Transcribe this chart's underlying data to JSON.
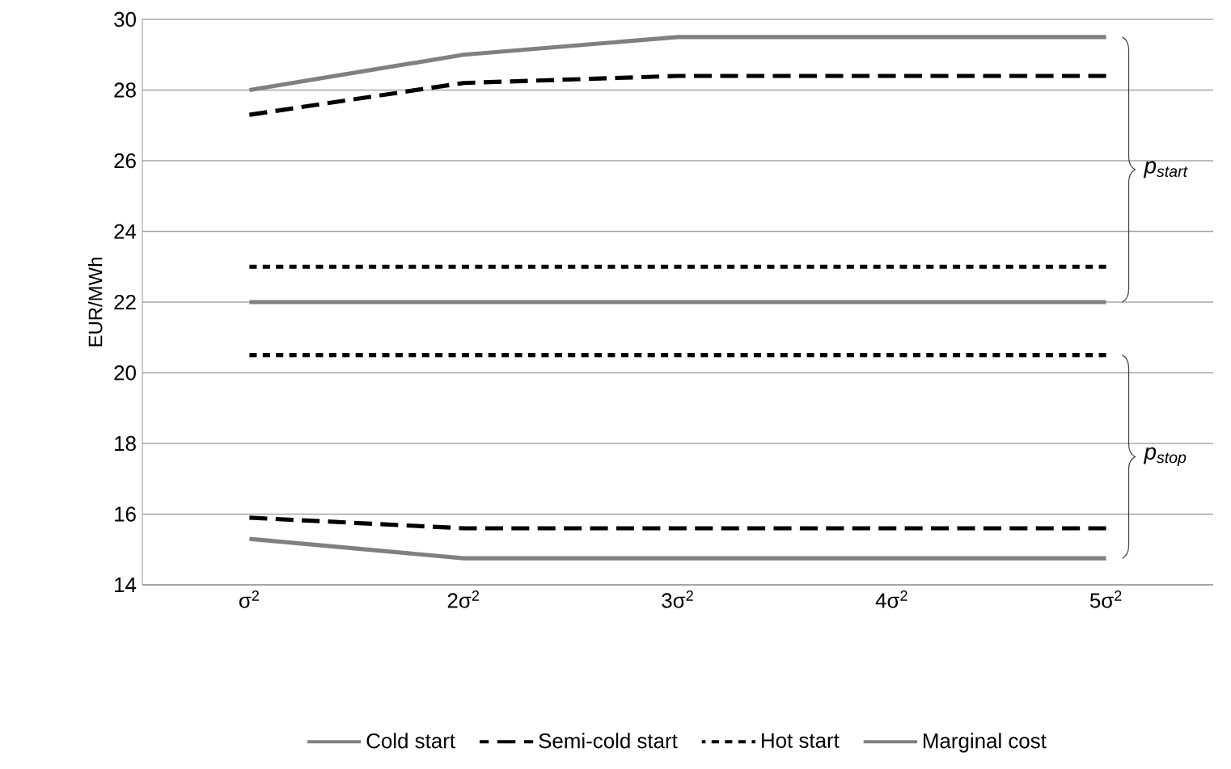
{
  "chart_data": {
    "type": "line",
    "ylabel": "EUR/MWh",
    "categories": [
      "σ$^{2}$",
      "2σ$^{2}$",
      "3σ$^{2}$",
      "4σ$^{2}$",
      "5σ$^{2}$"
    ],
    "ylim": [
      14,
      30
    ],
    "yticks": [
      14,
      16,
      18,
      20,
      22,
      24,
      26,
      28,
      30
    ],
    "grid": "y",
    "legend": "bottom",
    "marker": "none",
    "series": [
      {
        "name": "Cold start",
        "color": "#808080",
        "line_style": "solid",
        "values": [
          28,
          29,
          29.5,
          29.5,
          29.5
        ]
      },
      {
        "name": "Semi-cold start",
        "color": "#000000",
        "line_style": "dashed",
        "values": [
          27.3,
          28.2,
          28.4,
          28.4,
          28.4
        ]
      },
      {
        "name": "Hot start",
        "color": "#000000",
        "line_style": "dotted",
        "values": [
          23,
          23,
          23,
          23,
          23
        ]
      },
      {
        "name": "Marginal cost",
        "color": "#808080",
        "line_style": "solid",
        "values": [
          22,
          22,
          22,
          22,
          22
        ]
      },
      {
        "color": "#808080",
        "line_style": "solid",
        "values": [
          15.3,
          14.75,
          14.75,
          14.75,
          14.75
        ]
      },
      {
        "color": "#000000",
        "line_style": "dashed",
        "values": [
          15.9,
          15.6,
          15.6,
          15.6,
          15.6
        ]
      },
      {
        "color": "#000000",
        "line_style": "dotted",
        "values": [
          20.5,
          20.5,
          20.5,
          20.5,
          20.5
        ]
      }
    ],
    "annotations": [
      "p$_{start}$",
      "p$_{stop}$"
    ]
  }
}
